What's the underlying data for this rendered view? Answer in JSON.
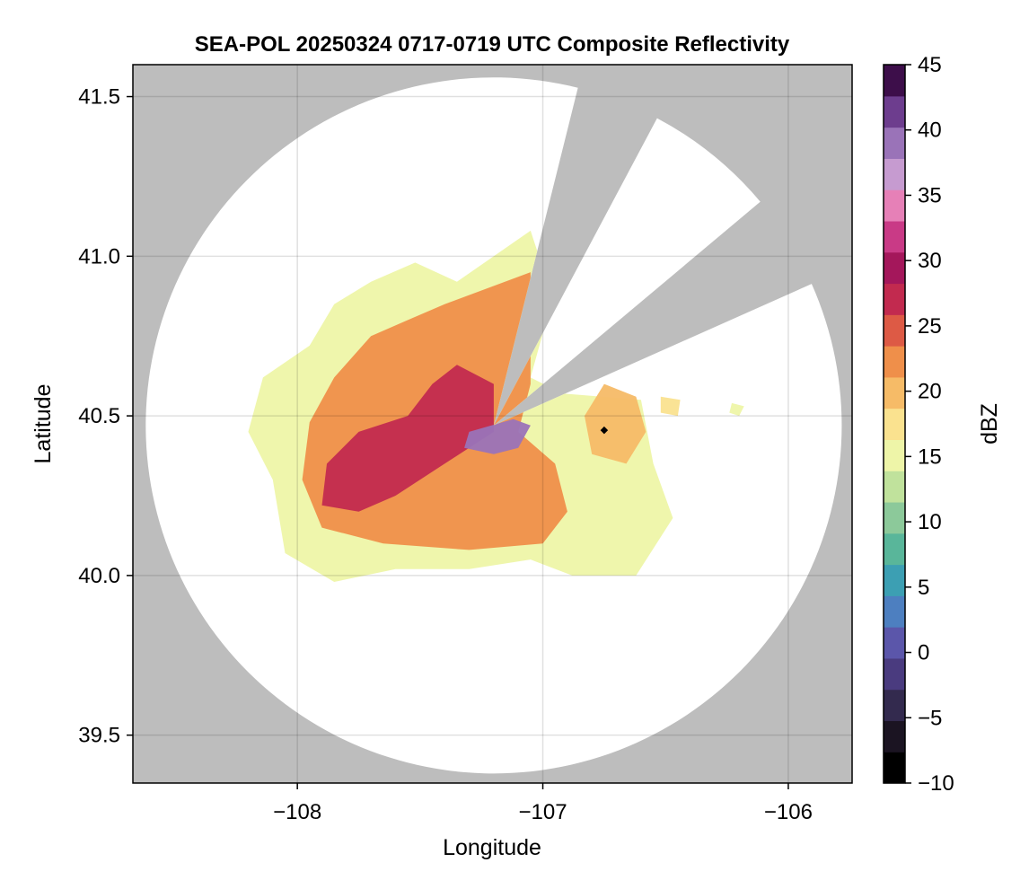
{
  "chart_data": {
    "type": "heatmap",
    "title": "SEA-POL 20250324 0717-0719 UTC Composite Reflectivity",
    "xlabel": "Longitude",
    "ylabel": "Latitude",
    "xlim": [
      -108.67,
      -105.74
    ],
    "ylim": [
      39.35,
      41.6
    ],
    "x_ticks": [
      -108,
      -107,
      -106
    ],
    "x_tick_labels": [
      "−108",
      "−107",
      "−106"
    ],
    "y_ticks": [
      39.5,
      40.0,
      40.5,
      41.0,
      41.5
    ],
    "y_tick_labels": [
      "39.5",
      "40.0",
      "40.5",
      "41.0",
      "41.5"
    ],
    "grid": true,
    "background_color": "#bdbdbd",
    "radar": {
      "center": [
        -107.2,
        40.47
      ],
      "coverage_radius_deg_lat": 1.09,
      "blocked_sectors_deg_from_north": [
        [
          14,
          28
        ],
        [
          50,
          66
        ]
      ]
    },
    "marker": {
      "lon": -106.75,
      "lat": 40.455,
      "color": "#000000"
    },
    "colorbar": {
      "label": "dBZ",
      "min": -10,
      "max": 45,
      "ticks": [
        -10,
        -5,
        0,
        5,
        10,
        15,
        20,
        25,
        30,
        35,
        40,
        45
      ],
      "tick_labels": [
        "−10",
        "−5",
        "0",
        "5",
        "10",
        "15",
        "20",
        "25",
        "30",
        "35",
        "40",
        "45"
      ],
      "colors": [
        "#000000",
        "#1b1422",
        "#332a4e",
        "#4a3b7f",
        "#5b56aa",
        "#4d7fc0",
        "#3c9fb3",
        "#59b69a",
        "#8cc99a",
        "#c0e29c",
        "#eef5a8",
        "#fae28f",
        "#f6bb67",
        "#ef8f4a",
        "#dd5a45",
        "#c22a4f",
        "#a4175b",
        "#c93a86",
        "#e680b7",
        "#c69bd0",
        "#9a73b8",
        "#6d3d8e",
        "#3d0e4a"
      ]
    },
    "echo_regions": [
      {
        "name": "main-echo",
        "dbz": 16,
        "polygon": [
          [
            -107.35,
            40.92
          ],
          [
            -107.05,
            41.08
          ],
          [
            -106.96,
            40.87
          ],
          [
            -107.05,
            40.62
          ],
          [
            -106.92,
            40.57
          ],
          [
            -106.6,
            40.55
          ],
          [
            -106.55,
            40.35
          ],
          [
            -106.47,
            40.18
          ],
          [
            -106.62,
            40.0
          ],
          [
            -106.88,
            40.0
          ],
          [
            -107.05,
            40.05
          ],
          [
            -107.3,
            40.02
          ],
          [
            -107.6,
            40.02
          ],
          [
            -107.85,
            39.98
          ],
          [
            -108.05,
            40.07
          ],
          [
            -108.1,
            40.3
          ],
          [
            -108.2,
            40.45
          ],
          [
            -108.14,
            40.62
          ],
          [
            -107.95,
            40.72
          ],
          [
            -107.85,
            40.85
          ],
          [
            -107.7,
            40.92
          ],
          [
            -107.52,
            40.98
          ]
        ]
      },
      {
        "name": "moderate-echo",
        "dbz": 22,
        "polygon": [
          [
            -107.4,
            40.85
          ],
          [
            -107.05,
            40.95
          ],
          [
            -107.05,
            40.6
          ],
          [
            -107.1,
            40.45
          ],
          [
            -106.95,
            40.35
          ],
          [
            -106.9,
            40.2
          ],
          [
            -107.0,
            40.1
          ],
          [
            -107.3,
            40.08
          ],
          [
            -107.65,
            40.1
          ],
          [
            -107.9,
            40.15
          ],
          [
            -107.98,
            40.3
          ],
          [
            -107.95,
            40.48
          ],
          [
            -107.85,
            40.62
          ],
          [
            -107.7,
            40.75
          ],
          [
            -107.55,
            40.8
          ]
        ]
      },
      {
        "name": "strong-echo",
        "dbz": 28,
        "polygon": [
          [
            -107.35,
            40.66
          ],
          [
            -107.2,
            40.6
          ],
          [
            -107.2,
            40.45
          ],
          [
            -107.4,
            40.35
          ],
          [
            -107.6,
            40.25
          ],
          [
            -107.75,
            40.2
          ],
          [
            -107.9,
            40.22
          ],
          [
            -107.88,
            40.35
          ],
          [
            -107.75,
            40.45
          ],
          [
            -107.55,
            40.5
          ],
          [
            -107.45,
            40.6
          ]
        ]
      },
      {
        "name": "east-echo",
        "dbz": 20,
        "polygon": [
          [
            -106.75,
            40.6
          ],
          [
            -106.62,
            40.56
          ],
          [
            -106.58,
            40.45
          ],
          [
            -106.66,
            40.35
          ],
          [
            -106.8,
            40.38
          ],
          [
            -106.83,
            40.5
          ]
        ]
      },
      {
        "name": "core-echo",
        "dbz": 38,
        "polygon": [
          [
            -107.3,
            40.45
          ],
          [
            -107.12,
            40.49
          ],
          [
            -107.05,
            40.47
          ],
          [
            -107.1,
            40.4
          ],
          [
            -107.2,
            40.38
          ],
          [
            -107.32,
            40.4
          ]
        ]
      },
      {
        "name": "cell-east-1",
        "dbz": 18,
        "polygon": [
          [
            -106.52,
            40.56
          ],
          [
            -106.44,
            40.55
          ],
          [
            -106.45,
            40.5
          ],
          [
            -106.52,
            40.51
          ]
        ]
      },
      {
        "name": "cell-east-2",
        "dbz": 16,
        "polygon": [
          [
            -106.23,
            40.54
          ],
          [
            -106.18,
            40.53
          ],
          [
            -106.2,
            40.5
          ],
          [
            -106.24,
            40.51
          ]
        ]
      }
    ]
  }
}
